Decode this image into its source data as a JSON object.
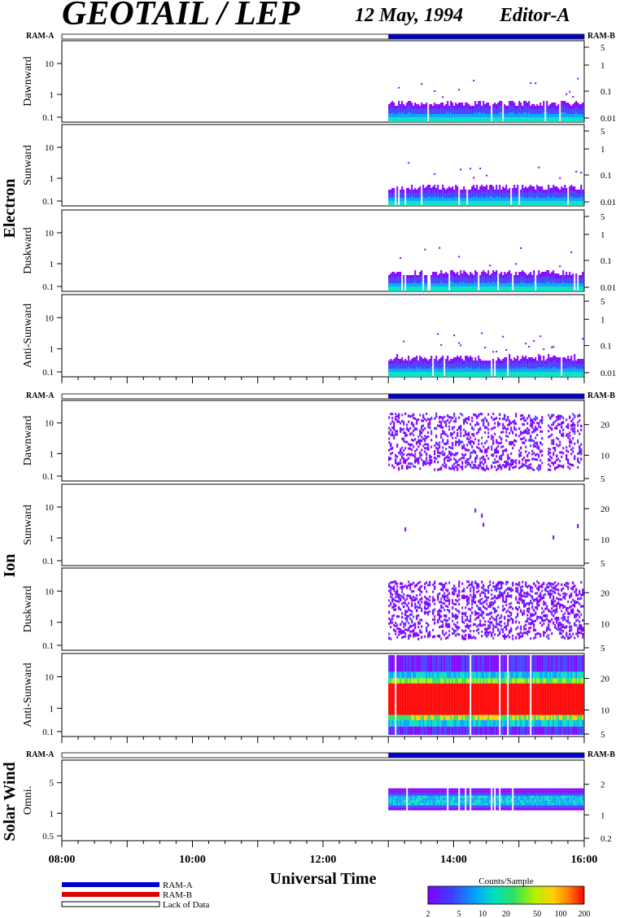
{
  "header": {
    "title": "GEOTAIL / LEP",
    "date": "12 May, 1994",
    "editor": "Editor-A"
  },
  "groups": {
    "electron": "Electron",
    "ion": "Ion",
    "solar_wind": "Solar Wind"
  },
  "ram_labels": {
    "left": "RAM-A",
    "right": "RAM-B"
  },
  "colors": {
    "ram_a": "#0000cc",
    "ram_b": "#dd0000",
    "spectrogram": [
      "#7f00ff",
      "#3f3fff",
      "#00a0ff",
      "#00e0c0",
      "#30e060",
      "#b0f000",
      "#ffd000",
      "#ff8000",
      "#ff0000"
    ]
  },
  "legend": {
    "ram_a": "RAM-A",
    "ram_b": "RAM-B",
    "lack": "Lack of Data",
    "colorbar_title": "Counts/Sample",
    "colorbar_ticks": [
      "2",
      "5",
      "10",
      "20",
      "50",
      "100",
      "200"
    ]
  },
  "chart_data": {
    "type": "heatmap",
    "xlabel": "Universal Time",
    "x_ticks": [
      "08:00",
      "10:00",
      "12:00",
      "14:00",
      "16:00"
    ],
    "x_range": [
      "08:00",
      "16:00"
    ],
    "data_start": "13:00",
    "panels": [
      {
        "group": "electron",
        "label": "Dawnward",
        "left_ticks": [
          "10",
          "1",
          "0.1"
        ],
        "right_ticks": [
          "5",
          "1",
          "0.1",
          "0.01"
        ],
        "band": "low",
        "dense": 0.25,
        "ram_b_marks": []
      },
      {
        "group": "electron",
        "label": "Sunward",
        "left_ticks": [
          "10",
          "1",
          "0.1"
        ],
        "right_ticks": [
          "5",
          "1",
          "0.1",
          "0.01"
        ],
        "band": "low",
        "dense": 0.22,
        "ram_b_marks": []
      },
      {
        "group": "electron",
        "label": "Duskward",
        "left_ticks": [
          "10",
          "1",
          "0.1"
        ],
        "right_ticks": [
          "5",
          "1",
          "0.1",
          "0.01"
        ],
        "band": "low",
        "dense": 0.22,
        "ram_b_marks": []
      },
      {
        "group": "electron",
        "label": "Anti-Sunward",
        "left_ticks": [
          "10",
          "1",
          "0.1"
        ],
        "right_ticks": [
          "5",
          "1",
          "0.1",
          "0.01"
        ],
        "band": "low",
        "dense": 0.25,
        "ram_b_marks": []
      },
      {
        "group": "ion",
        "label": "Dawnward",
        "left_ticks": [
          "10",
          "1",
          "0.1"
        ],
        "right_ticks": [
          "20",
          "10",
          "5"
        ],
        "band": "scatter",
        "dense": 0.35,
        "ram_b_marks": [
          "14:15",
          "15:10",
          "15:50"
        ]
      },
      {
        "group": "ion",
        "label": "Sunward",
        "left_ticks": [
          "10",
          "1",
          "0.1"
        ],
        "right_ticks": [
          "20",
          "10",
          "5"
        ],
        "band": "sparse",
        "dense": 0.02,
        "ram_b_marks": []
      },
      {
        "group": "ion",
        "label": "Duskward",
        "left_ticks": [
          "10",
          "1",
          "0.1"
        ],
        "right_ticks": [
          "20",
          "10",
          "5"
        ],
        "band": "scatter",
        "dense": 0.4,
        "ram_b_marks": []
      },
      {
        "group": "ion",
        "label": "Anti-Sunward",
        "left_ticks": [
          "10",
          "1",
          "0.1"
        ],
        "right_ticks": [
          "20",
          "10",
          "5"
        ],
        "band": "strong",
        "dense": 0.9,
        "ram_b_marks": []
      },
      {
        "group": "solar_wind",
        "label": "Omni.",
        "left_ticks": [
          "5",
          "1",
          "0.5"
        ],
        "right_ticks": [
          "2",
          "1",
          "0.2"
        ],
        "band": "sw",
        "dense": 0.6,
        "ram_b_marks": []
      }
    ]
  }
}
